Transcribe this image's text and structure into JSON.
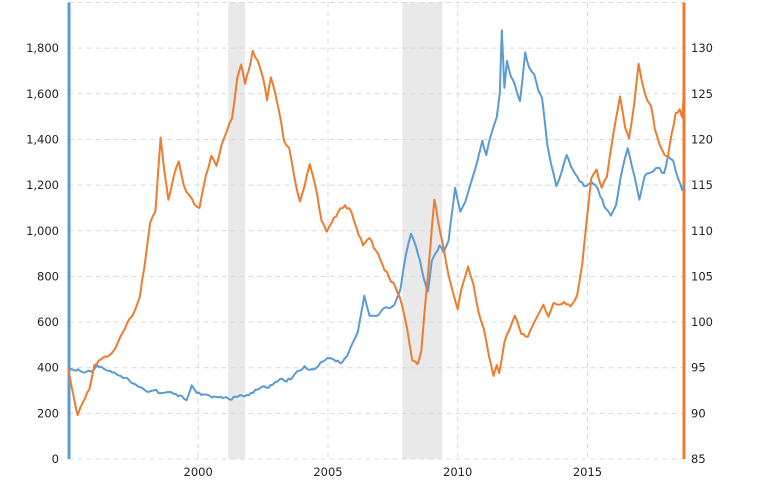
{
  "chart_data": {
    "type": "line",
    "title": "",
    "legend": "none",
    "grid": "dashed",
    "background_color": "#ffffff",
    "gridline_color": "#d9d9d9",
    "recession_band_color": "#e9e9e9",
    "label_color": "#222222",
    "x_axis": {
      "range": [
        1995.0,
        2018.72
      ],
      "ticks": [
        {
          "value": 2000,
          "label": "2000"
        },
        {
          "value": 2005,
          "label": "2005"
        },
        {
          "value": 2010,
          "label": "2010"
        },
        {
          "value": 2015,
          "label": "2015"
        }
      ]
    },
    "y_axis_left": {
      "range": [
        0,
        2000
      ],
      "axis_line_color": "#5b9bd5",
      "ticks": [
        {
          "value": 2000,
          "label": ""
        },
        {
          "value": 1800,
          "label": "1,800"
        },
        {
          "value": 1600,
          "label": "1,600"
        },
        {
          "value": 1400,
          "label": "1,400"
        },
        {
          "value": 1200,
          "label": "1,200"
        },
        {
          "value": 1000,
          "label": "1,000"
        },
        {
          "value": 800,
          "label": "800"
        },
        {
          "value": 600,
          "label": "600"
        },
        {
          "value": 400,
          "label": "400"
        },
        {
          "value": 200,
          "label": "200"
        },
        {
          "value": 0,
          "label": "0"
        }
      ]
    },
    "y_axis_right": {
      "range": [
        85,
        135
      ],
      "axis_line_color": "#ed7c2f",
      "ticks": [
        {
          "value": 135,
          "label": ""
        },
        {
          "value": 130,
          "label": "130"
        },
        {
          "value": 125,
          "label": "125"
        },
        {
          "value": 120,
          "label": "120"
        },
        {
          "value": 115,
          "label": "115"
        },
        {
          "value": 110,
          "label": "110"
        },
        {
          "value": 105,
          "label": "105"
        },
        {
          "value": 100,
          "label": "100"
        },
        {
          "value": 95,
          "label": "95"
        },
        {
          "value": 90,
          "label": "90"
        },
        {
          "value": 85,
          "label": "85"
        }
      ]
    },
    "recession_bands": [
      {
        "from": 2001.15,
        "to": 2001.8
      },
      {
        "from": 2007.87,
        "to": 2009.4
      }
    ],
    "series": [
      {
        "id": "blue_series",
        "axis": "left",
        "color": "#5b9bd5",
        "points": [
          [
            1995.0,
            385
          ],
          [
            1995.2,
            390
          ],
          [
            1995.45,
            386
          ],
          [
            1995.7,
            383
          ],
          [
            1995.95,
            389
          ],
          [
            1996.1,
            411
          ],
          [
            1996.35,
            396
          ],
          [
            1996.6,
            387
          ],
          [
            1996.85,
            371
          ],
          [
            1997.1,
            355
          ],
          [
            1997.35,
            343
          ],
          [
            1997.6,
            326
          ],
          [
            1997.85,
            310
          ],
          [
            1998.05,
            294
          ],
          [
            1998.3,
            301
          ],
          [
            1998.55,
            288
          ],
          [
            1998.8,
            293
          ],
          [
            1999.05,
            285
          ],
          [
            1999.3,
            279
          ],
          [
            1999.55,
            257
          ],
          [
            1999.75,
            323
          ],
          [
            1999.95,
            289
          ],
          [
            2000.2,
            283
          ],
          [
            2000.45,
            276
          ],
          [
            2000.7,
            272
          ],
          [
            2000.95,
            267
          ],
          [
            2001.2,
            261
          ],
          [
            2001.45,
            272
          ],
          [
            2001.7,
            277
          ],
          [
            2001.95,
            279
          ],
          [
            2002.2,
            303
          ],
          [
            2002.45,
            316
          ],
          [
            2002.7,
            311
          ],
          [
            2002.95,
            336
          ],
          [
            2003.15,
            351
          ],
          [
            2003.4,
            339
          ],
          [
            2003.65,
            361
          ],
          [
            2003.9,
            387
          ],
          [
            2004.1,
            407
          ],
          [
            2004.3,
            391
          ],
          [
            2004.55,
            399
          ],
          [
            2004.8,
            427
          ],
          [
            2005.05,
            442
          ],
          [
            2005.3,
            428
          ],
          [
            2005.55,
            424
          ],
          [
            2005.75,
            452
          ],
          [
            2005.95,
            508
          ],
          [
            2006.15,
            556
          ],
          [
            2006.4,
            716
          ],
          [
            2006.6,
            628
          ],
          [
            2006.85,
            626
          ],
          [
            2007.05,
            649
          ],
          [
            2007.3,
            663
          ],
          [
            2007.55,
            674
          ],
          [
            2007.8,
            747
          ],
          [
            2008.0,
            892
          ],
          [
            2008.2,
            986
          ],
          [
            2008.4,
            928
          ],
          [
            2008.55,
            868
          ],
          [
            2008.7,
            788
          ],
          [
            2008.85,
            734
          ],
          [
            2009.0,
            868
          ],
          [
            2009.15,
            902
          ],
          [
            2009.3,
            936
          ],
          [
            2009.45,
            906
          ],
          [
            2009.65,
            957
          ],
          [
            2009.9,
            1188
          ],
          [
            2010.1,
            1084
          ],
          [
            2010.3,
            1129
          ],
          [
            2010.5,
            1206
          ],
          [
            2010.75,
            1302
          ],
          [
            2010.95,
            1394
          ],
          [
            2011.1,
            1332
          ],
          [
            2011.3,
            1428
          ],
          [
            2011.5,
            1496
          ],
          [
            2011.62,
            1602
          ],
          [
            2011.7,
            1878
          ],
          [
            2011.8,
            1626
          ],
          [
            2011.9,
            1744
          ],
          [
            2012.05,
            1676
          ],
          [
            2012.2,
            1642
          ],
          [
            2012.4,
            1568
          ],
          [
            2012.6,
            1782
          ],
          [
            2012.75,
            1716
          ],
          [
            2012.95,
            1684
          ],
          [
            2013.1,
            1616
          ],
          [
            2013.25,
            1582
          ],
          [
            2013.45,
            1376
          ],
          [
            2013.6,
            1292
          ],
          [
            2013.8,
            1196
          ],
          [
            2014.0,
            1256
          ],
          [
            2014.2,
            1332
          ],
          [
            2014.45,
            1264
          ],
          [
            2014.7,
            1216
          ],
          [
            2014.95,
            1196
          ],
          [
            2015.15,
            1214
          ],
          [
            2015.4,
            1184
          ],
          [
            2015.65,
            1106
          ],
          [
            2015.9,
            1066
          ],
          [
            2016.1,
            1112
          ],
          [
            2016.35,
            1272
          ],
          [
            2016.55,
            1362
          ],
          [
            2016.8,
            1244
          ],
          [
            2017.0,
            1136
          ],
          [
            2017.2,
            1238
          ],
          [
            2017.45,
            1256
          ],
          [
            2017.7,
            1276
          ],
          [
            2017.95,
            1252
          ],
          [
            2018.1,
            1328
          ],
          [
            2018.3,
            1308
          ],
          [
            2018.5,
            1226
          ],
          [
            2018.65,
            1178
          ],
          [
            2018.72,
            1196
          ]
        ]
      },
      {
        "id": "orange_series",
        "axis": "right",
        "color": "#ed7c2f",
        "points": [
          [
            1995.0,
            94.8
          ],
          [
            1995.15,
            92.5
          ],
          [
            1995.35,
            89.8
          ],
          [
            1995.55,
            91.2
          ],
          [
            1995.8,
            92.6
          ],
          [
            1996.0,
            95.3
          ],
          [
            1996.25,
            95.9
          ],
          [
            1996.5,
            96.2
          ],
          [
            1996.75,
            96.9
          ],
          [
            1997.0,
            98.4
          ],
          [
            1997.25,
            99.8
          ],
          [
            1997.5,
            100.9
          ],
          [
            1997.75,
            102.8
          ],
          [
            1998.0,
            107.6
          ],
          [
            1998.15,
            110.9
          ],
          [
            1998.35,
            112.1
          ],
          [
            1998.55,
            120.2
          ],
          [
            1998.7,
            116.4
          ],
          [
            1998.85,
            113.4
          ],
          [
            1999.05,
            115.9
          ],
          [
            1999.25,
            117.6
          ],
          [
            1999.45,
            114.9
          ],
          [
            1999.65,
            113.9
          ],
          [
            1999.85,
            112.9
          ],
          [
            2000.05,
            112.5
          ],
          [
            2000.3,
            116.1
          ],
          [
            2000.5,
            118.2
          ],
          [
            2000.7,
            117.1
          ],
          [
            2000.9,
            119.4
          ],
          [
            2001.1,
            120.9
          ],
          [
            2001.3,
            122.3
          ],
          [
            2001.5,
            126.7
          ],
          [
            2001.65,
            128.2
          ],
          [
            2001.8,
            126.1
          ],
          [
            2001.95,
            127.6
          ],
          [
            2002.1,
            129.7
          ],
          [
            2002.3,
            128.6
          ],
          [
            2002.5,
            126.7
          ],
          [
            2002.65,
            124.3
          ],
          [
            2002.8,
            126.8
          ],
          [
            2002.95,
            125.3
          ],
          [
            2003.1,
            123.3
          ],
          [
            2003.3,
            119.9
          ],
          [
            2003.5,
            119.1
          ],
          [
            2003.7,
            115.9
          ],
          [
            2003.92,
            113.2
          ],
          [
            2004.1,
            114.9
          ],
          [
            2004.3,
            117.3
          ],
          [
            2004.5,
            115.1
          ],
          [
            2004.75,
            111.1
          ],
          [
            2004.95,
            109.9
          ],
          [
            2005.15,
            110.9
          ],
          [
            2005.4,
            112.1
          ],
          [
            2005.65,
            112.8
          ],
          [
            2005.9,
            112.1
          ],
          [
            2006.1,
            110.3
          ],
          [
            2006.35,
            108.4
          ],
          [
            2006.6,
            109.2
          ],
          [
            2006.85,
            107.8
          ],
          [
            2007.1,
            106.3
          ],
          [
            2007.35,
            104.9
          ],
          [
            2007.6,
            103.8
          ],
          [
            2007.85,
            101.9
          ],
          [
            2008.05,
            99.3
          ],
          [
            2008.25,
            95.8
          ],
          [
            2008.45,
            95.4
          ],
          [
            2008.6,
            96.9
          ],
          [
            2008.8,
            103.6
          ],
          [
            2008.95,
            108.4
          ],
          [
            2009.1,
            113.4
          ],
          [
            2009.25,
            110.9
          ],
          [
            2009.45,
            108.2
          ],
          [
            2009.65,
            105.1
          ],
          [
            2009.85,
            102.9
          ],
          [
            2010.0,
            101.4
          ],
          [
            2010.15,
            103.7
          ],
          [
            2010.4,
            106.1
          ],
          [
            2010.6,
            104.2
          ],
          [
            2010.8,
            101.1
          ],
          [
            2011.0,
            99.3
          ],
          [
            2011.2,
            96.3
          ],
          [
            2011.38,
            94.1
          ],
          [
            2011.5,
            95.3
          ],
          [
            2011.6,
            94.4
          ],
          [
            2011.8,
            97.8
          ],
          [
            2012.0,
            99.2
          ],
          [
            2012.2,
            100.7
          ],
          [
            2012.45,
            98.7
          ],
          [
            2012.7,
            98.4
          ],
          [
            2012.9,
            99.7
          ],
          [
            2013.1,
            100.8
          ],
          [
            2013.3,
            101.9
          ],
          [
            2013.5,
            100.6
          ],
          [
            2013.7,
            102.1
          ],
          [
            2013.9,
            101.9
          ],
          [
            2014.1,
            102.2
          ],
          [
            2014.35,
            101.7
          ],
          [
            2014.6,
            102.9
          ],
          [
            2014.8,
            106.4
          ],
          [
            2015.0,
            111.9
          ],
          [
            2015.15,
            115.8
          ],
          [
            2015.35,
            116.7
          ],
          [
            2015.55,
            114.7
          ],
          [
            2015.75,
            115.9
          ],
          [
            2015.95,
            119.7
          ],
          [
            2016.1,
            122.3
          ],
          [
            2016.25,
            124.7
          ],
          [
            2016.45,
            121.3
          ],
          [
            2016.6,
            120.1
          ],
          [
            2016.8,
            123.9
          ],
          [
            2016.97,
            128.3
          ],
          [
            2017.1,
            126.3
          ],
          [
            2017.3,
            124.3
          ],
          [
            2017.45,
            123.7
          ],
          [
            2017.6,
            121.1
          ],
          [
            2017.8,
            119.3
          ],
          [
            2017.97,
            118.3
          ],
          [
            2018.1,
            118.1
          ],
          [
            2018.25,
            120.7
          ],
          [
            2018.4,
            122.9
          ],
          [
            2018.55,
            123.3
          ],
          [
            2018.65,
            122.4
          ],
          [
            2018.72,
            125.3
          ]
        ]
      }
    ]
  }
}
